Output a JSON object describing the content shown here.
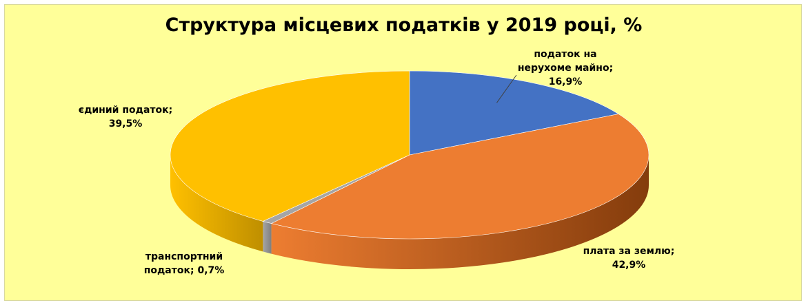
{
  "chart_data": {
    "type": "pie",
    "title": "Структура місцевих податків у 2019 році, %",
    "three_d": true,
    "legend": "none",
    "slices": [
      {
        "label_lines": [
          "податок на",
          "нерухоме майно;",
          "16,9%"
        ],
        "value": 16.9,
        "color": "#4472c4",
        "side_color": "#2f5597"
      },
      {
        "label_lines": [
          "плата за землю;",
          "42,9%"
        ],
        "value": 42.9,
        "color": "#ed7d31",
        "side_color": "#843c0c"
      },
      {
        "label_lines": [
          "транспортний",
          "податок; 0,7%"
        ],
        "value": 0.7,
        "color": "#a5a5a5",
        "side_color": "#7f7f7f"
      },
      {
        "label_lines": [
          "єдиний податок;",
          "39,5%"
        ],
        "value": 39.5,
        "color": "#ffc000",
        "side_color": "#bf8f00"
      }
    ],
    "background": "#ffff99"
  }
}
